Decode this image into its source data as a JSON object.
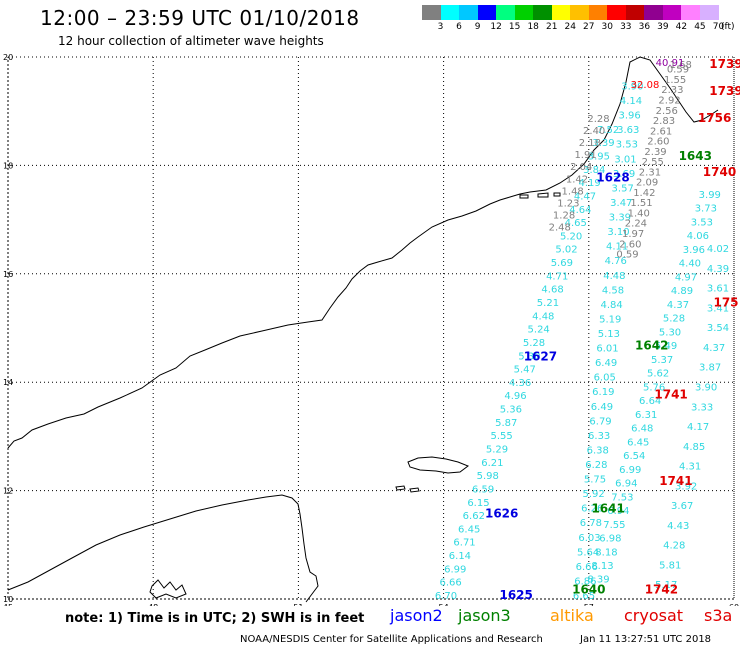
{
  "header": {
    "title": "12:00 – 23:59 UTC 01/10/2018",
    "subtitle": "12 hour collection of altimeter wave heights"
  },
  "colorbar": {
    "colors": [
      "#808080",
      "#00ffff",
      "#00c8ff",
      "#0000ff",
      "#00ff80",
      "#00d000",
      "#009000",
      "#ffff00",
      "#ffc000",
      "#ff8000",
      "#ff0000",
      "#c00000",
      "#900090",
      "#c000c0",
      "#ff80ff",
      "#d8b0ff",
      "#ffffff"
    ],
    "labels": [
      "3",
      "6",
      "9",
      "12",
      "15",
      "18",
      "21",
      "24",
      "27",
      "30",
      "33",
      "36",
      "39",
      "42",
      "45",
      "70",
      "(ft)"
    ]
  },
  "axes": {
    "lon_labels": [
      "45",
      "48",
      "51",
      "54",
      "57",
      "60"
    ],
    "lat_labels": [
      "20",
      "18",
      "16",
      "14",
      "12",
      "10"
    ],
    "lon_range": [
      45,
      60
    ],
    "lat_range": [
      10,
      20
    ],
    "grid": true
  },
  "tracks": [
    {
      "color": "#30d8e0",
      "passes": [
        {
          "lon_range": [
            54.05,
            57.4
          ],
          "lat_range": [
            10.0,
            18.6
          ]
        },
        {
          "lon_range": [
            56.9,
            57.9
          ],
          "lat_range": [
            10.0,
            19.4
          ]
        }
      ],
      "values": [
        "6.70",
        "6.66",
        "6.99",
        "6.14",
        "6.71",
        "6.45",
        "6.62",
        "6.15",
        "6.59",
        "5.98",
        "6.21",
        "5.29",
        "5.55",
        "5.87",
        "5.36",
        "4.96",
        "4.36",
        "5.47",
        "5.30",
        "5.28",
        "5.24",
        "4.48",
        "5.21",
        "4.68",
        "4.71",
        "5.69",
        "5.02",
        "5.20",
        "4.65",
        "4.64",
        "4.47",
        "4.19",
        "3.84",
        "3.95",
        "3.39",
        "7.52",
        "6.65",
        "6.86",
        "6.66",
        "5.64",
        "6.03",
        "6.78",
        "6.26",
        "5.92",
        "5.75",
        "6.28",
        "6.38",
        "6.33",
        "6.79",
        "6.49",
        "6.19",
        "6.05",
        "6.49",
        "6.01",
        "5.13",
        "5.19",
        "4.84",
        "4.58",
        "4.48",
        "4.76",
        "4.11",
        "3.10",
        "3.39",
        "3.47",
        "3.57",
        "3.69",
        "3.01",
        "3.53",
        "3.63",
        "3.96",
        "4.14",
        "3.90"
      ]
    },
    {
      "color": "#30d8e0",
      "passes": [
        {
          "lon_range": [
            57.2,
            59.5
          ],
          "lat_range": [
            10.3,
            17.4
          ]
        }
      ],
      "values": [
        "8.39",
        "8.13",
        "8.18",
        "6.98",
        "7.55",
        "6.94",
        "7.53",
        "6.94",
        "6.99",
        "6.54",
        "6.45",
        "6.48",
        "6.31",
        "6.64",
        "5.76",
        "5.62",
        "5.37",
        "5.49",
        "5.30",
        "5.28",
        "4.37",
        "4.89",
        "4.97",
        "4.40",
        "3.96",
        "4.06",
        "3.53",
        "3.73",
        "3.99"
      ]
    },
    {
      "color": "#30d8e0",
      "passes": [
        {
          "lon_range": [
            58.6,
            60.0
          ],
          "lat_range": [
            10.2,
            16.4
          ]
        }
      ],
      "values": [
        "5.17",
        "5.81",
        "4.28",
        "4.43",
        "3.67",
        "3.92",
        "4.31",
        "4.85",
        "4.17",
        "3.33",
        "3.90",
        "3.87",
        "4.37",
        "3.54",
        "3.41",
        "3.61",
        "4.39",
        "4.02"
      ]
    },
    {
      "color": "#808080",
      "passes": [
        {
          "lon_range": [
            57.8,
            58.9
          ],
          "lat_range": [
            16.3,
            19.9
          ]
        }
      ],
      "values": [
        "0.59",
        "2.60",
        "1.97",
        "2.24",
        "1.40",
        "1.51",
        "1.42",
        "2.09",
        "2.31",
        "2.55",
        "2.39",
        "2.60",
        "2.61",
        "2.83",
        "2.56",
        "2.92",
        "2.33",
        "1.55",
        "0.59",
        "1.68"
      ]
    },
    {
      "color": "#808080",
      "passes": [
        {
          "lon_range": [
            56.4,
            57.2
          ],
          "lat_range": [
            16.8,
            18.8
          ]
        }
      ],
      "values": [
        "2.48",
        "1.28",
        "1.23",
        "1.48",
        "1.42",
        "2.04",
        "1.91",
        "2.18",
        "2.40",
        "2.28"
      ]
    }
  ],
  "red_values": [
    {
      "text": "40.91",
      "color": "#9000a0"
    },
    {
      "text": "32.08",
      "color": "#ff0000"
    }
  ],
  "pass_times": [
    {
      "text": "1625",
      "color": "#0000e0"
    },
    {
      "text": "1626",
      "color": "#0000e0"
    },
    {
      "text": "1627",
      "color": "#0000e0"
    },
    {
      "text": "1628",
      "color": "#0000e0"
    },
    {
      "text": "1640",
      "color": "#008000"
    },
    {
      "text": "1641",
      "color": "#008000"
    },
    {
      "text": "1642",
      "color": "#008000"
    },
    {
      "text": "1643",
      "color": "#008000"
    },
    {
      "text": "1739",
      "color": "#e00000"
    },
    {
      "text": "1739",
      "color": "#e00000"
    },
    {
      "text": "1740",
      "color": "#e00000"
    },
    {
      "text": "1741",
      "color": "#e00000"
    },
    {
      "text": "1741",
      "color": "#e00000"
    },
    {
      "text": "1742",
      "color": "#e00000"
    },
    {
      "text": "1756",
      "color": "#e00000"
    },
    {
      "text": "175",
      "color": "#e00000"
    }
  ],
  "footer": {
    "note": "note: 1) Time is in UTC; 2) SWH is in feet",
    "legend": [
      {
        "label": "jason2",
        "color": "#0000ff"
      },
      {
        "label": "jason3",
        "color": "#008000"
      },
      {
        "label": "altika",
        "color": "#ff9900"
      },
      {
        "label": "cryosat",
        "color": "#e00000"
      },
      {
        "label": "s3a",
        "color": "#e00000"
      }
    ],
    "credit": "NOAA/NESDIS Center for Satellite Applications and Research",
    "timestamp": "Jan 11 13:27:51 UTC 2018"
  }
}
